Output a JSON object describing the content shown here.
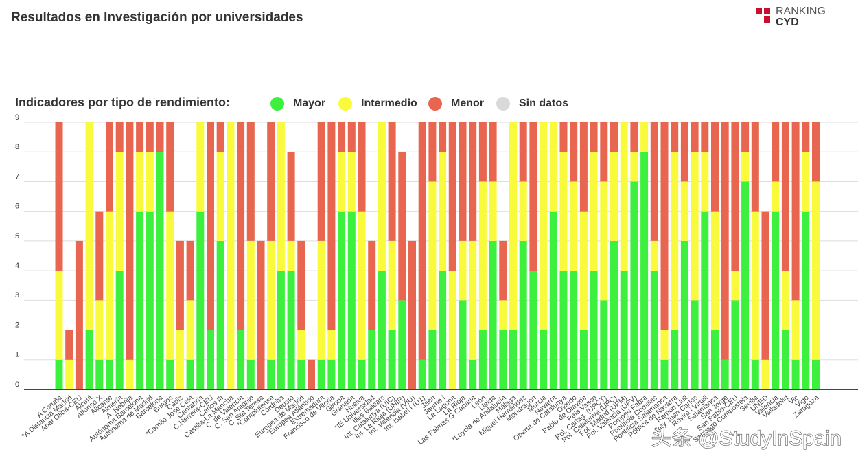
{
  "logo": {
    "line1": "RANKING",
    "line2": "CYD"
  },
  "chart_data": {
    "type": "stacked_bar",
    "title": "Resultados en Investigación por universidades",
    "legend_title": "Indicadores por tipo de rendimiento:",
    "watermark": "头条 @StudyInSpain",
    "categories": [
      "A Coruña",
      "*A Distancia Madrid",
      "Abat Oliba-CEU",
      "Alcalá",
      "Alfonso X",
      "Alicante",
      "Almería",
      "A. Nebrija",
      "Autónoma Barcelona",
      "Autónoma de Madrid",
      "Barcelona",
      "Burgos",
      "Cádiz",
      "*Camilo José Cela",
      "Cantabria",
      "C.Herrera-CEU",
      "Carlos III",
      "Castilla-La Mancha",
      "C. de Valencia",
      "C. San Antonio",
      "C. Sta Teresa",
      "*Complutense",
      "Córdoba",
      "Deusto",
      "Europea de Madrid",
      "*Europea Atlántico",
      "Extremadura",
      "Francisco de Vitoria",
      "Girona",
      "Granada",
      "Huelva",
      "*IE Universidad",
      "Illes Balears",
      "Int. Catalunya (UIC)",
      "Int. La Rioja (UNIR)",
      "Int. Valencia (VIU)",
      "Int. Isabel I (U1)",
      "Jaén",
      "Jaume I",
      "La Laguna",
      "La Rioja",
      "Las Palmas G Canaria",
      "León",
      "Lleida",
      "*Loyola de Andalucía",
      "Málaga",
      "Miguel Hernández",
      "Mondragón",
      "Murcia",
      "Navarra",
      "Oberta de Catalunya",
      "Oviedo",
      "Pablo de Olavide",
      "País Vasco",
      "Pol. Cartag. (UPCT)",
      "Pol. Catalunya (UPC)",
      "Pol. Madrid (UPM)",
      "Pol. València (UPV)",
      "Pompeu Fabra",
      "Pontificia Comillas",
      "Pontificia Salamanca",
      "Pública de Navarra",
      "Ramon Llull",
      "Rey Juan Carlos",
      "Rovira i Virgili",
      "Salamanca",
      "San Jorge",
      "San Pablo-CEU",
      "Santiago Compostela",
      "Sevilla",
      "UNED",
      "Valencia",
      "Valladolid",
      "Vic",
      "Vigo",
      "Zaragoza"
    ],
    "series": [
      {
        "name": "Mayor",
        "color": "#3ef03e",
        "values": [
          1,
          0,
          0,
          2,
          1,
          1,
          4,
          0,
          6,
          6,
          8,
          1,
          0,
          1,
          6,
          2,
          5,
          0,
          2,
          1,
          0,
          1,
          4,
          4,
          1,
          0,
          1,
          1,
          6,
          6,
          1,
          2,
          4,
          2,
          3,
          0,
          1,
          2,
          4,
          0,
          3,
          1,
          2,
          5,
          2,
          2,
          5,
          4,
          2,
          6,
          4,
          4,
          2,
          4,
          3,
          5,
          4,
          7,
          8,
          4,
          1,
          2,
          5,
          3,
          6,
          2,
          1,
          3,
          7,
          1,
          0,
          6,
          2,
          1,
          6,
          1
        ]
      },
      {
        "name": "Intermedio",
        "color": "#fafa3c",
        "values": [
          3,
          1,
          0,
          7,
          2,
          5,
          4,
          1,
          2,
          2,
          0,
          5,
          2,
          2,
          3,
          0,
          3,
          9,
          0,
          4,
          0,
          4,
          5,
          1,
          1,
          0,
          4,
          1,
          2,
          2,
          5,
          0,
          5,
          3,
          0,
          0,
          0,
          5,
          4,
          4,
          2,
          4,
          5,
          2,
          1,
          7,
          2,
          0,
          7,
          3,
          4,
          3,
          4,
          4,
          4,
          3,
          5,
          1,
          1,
          1,
          1,
          6,
          2,
          5,
          2,
          4,
          0,
          1,
          1,
          5,
          1,
          1,
          2,
          2,
          2,
          6
        ]
      },
      {
        "name": "Menor",
        "color": "#e8664f",
        "values": [
          5,
          1,
          5,
          0,
          3,
          3,
          1,
          8,
          1,
          1,
          1,
          3,
          3,
          2,
          0,
          7,
          1,
          0,
          7,
          4,
          5,
          4,
          0,
          3,
          3,
          1,
          4,
          7,
          1,
          1,
          3,
          3,
          0,
          4,
          5,
          5,
          8,
          2,
          1,
          5,
          4,
          4,
          2,
          2,
          2,
          0,
          2,
          5,
          0,
          0,
          1,
          2,
          3,
          1,
          2,
          1,
          0,
          1,
          0,
          4,
          7,
          1,
          2,
          1,
          1,
          3,
          8,
          5,
          1,
          3,
          5,
          2,
          5,
          6,
          1,
          2
        ]
      },
      {
        "name": "Sin datos",
        "color": "#d9d9d9",
        "values": [
          0,
          0,
          0,
          0,
          0,
          0,
          0,
          0,
          0,
          0,
          0,
          0,
          0,
          0,
          0,
          0,
          0,
          0,
          0,
          0,
          0,
          0,
          0,
          0,
          0,
          0,
          0,
          0,
          0,
          0,
          0,
          0,
          0,
          0,
          0,
          0,
          0,
          0,
          0,
          0,
          0,
          0,
          0,
          0,
          0,
          0,
          0,
          0,
          0,
          0,
          0,
          0,
          0,
          0,
          0,
          0,
          0,
          0,
          0,
          0,
          0,
          0,
          0,
          0,
          0,
          0,
          0,
          0,
          0,
          0,
          0,
          0,
          0,
          0,
          0,
          0
        ]
      }
    ],
    "ylim": [
      0,
      9
    ],
    "yticks": [
      0,
      1,
      2,
      3,
      4,
      5,
      6,
      7,
      8,
      9
    ],
    "grid": true
  }
}
